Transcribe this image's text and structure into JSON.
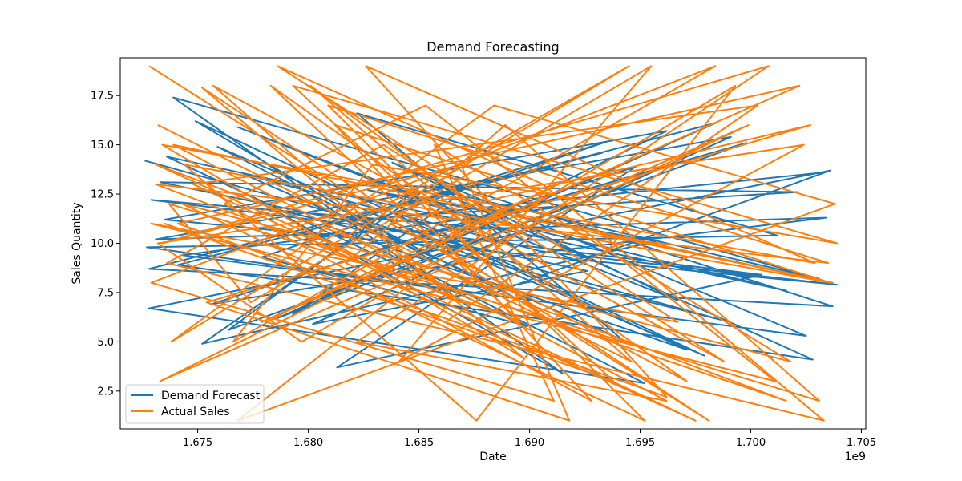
{
  "chart_data": {
    "type": "line",
    "title": "Demand Forecasting",
    "xlabel": "Date",
    "ylabel": "Sales Quantity",
    "x_offset_label": "1e9",
    "xlim": [
      1.6715,
      1.7052
    ],
    "ylim": [
      0.58,
      19.42
    ],
    "x_ticks": [
      1.675,
      1.68,
      1.685,
      1.69,
      1.695,
      1.7,
      1.705
    ],
    "x_tick_labels": [
      "1.675",
      "1.680",
      "1.685",
      "1.690",
      "1.695",
      "1.700",
      "1.705"
    ],
    "y_ticks": [
      2.5,
      5.0,
      7.5,
      10.0,
      12.5,
      15.0,
      17.5
    ],
    "y_tick_labels": [
      "2.5",
      "5.0",
      "7.5",
      "10.0",
      "12.5",
      "15.0",
      "17.5"
    ],
    "grid": false,
    "legend_position": "lower-left",
    "series": [
      {
        "name": "Demand Forecast",
        "color": "#1f77b4",
        "x": [
          1.6726,
          1.6987,
          1.6783,
          1.6915,
          1.6739,
          1.7031,
          1.6851,
          1.6764,
          1.6998,
          1.6832,
          1.6952,
          1.6728,
          1.7036,
          1.6882,
          1.6749,
          1.6971,
          1.6808,
          1.6933,
          1.6741,
          1.7028,
          1.6866,
          1.6793,
          1.6962,
          1.6735,
          1.7039,
          1.6905,
          1.6771,
          1.6942,
          1.6822,
          1.7012,
          1.6727,
          1.6894,
          1.6759,
          1.6979,
          1.6844,
          1.7021,
          1.6733,
          1.6926,
          1.6802,
          1.6991,
          1.6731,
          1.7034,
          1.6874,
          1.6756,
          1.6948,
          1.6813,
          1.7005,
          1.6729,
          1.6889,
          1.6768,
          1.6967,
          1.6838,
          1.7025,
          1.6743,
          1.6918,
          1.6786,
          1.6984,
          1.6728,
          1.7037,
          1.6859,
          1.6752,
          1.6957,
          1.6827,
          1.7016,
          1.6736,
          1.6899,
          1.6779,
          1.6936,
          1.6818,
          1.7033
        ],
        "y": [
          14.2,
          6.1,
          11.8,
          3.4,
          17.4,
          8.2,
          12.9,
          5.6,
          15.1,
          9.7,
          2.9,
          6.7,
          13.7,
          7.4,
          16.2,
          4.6,
          10.9,
          14.6,
          8.9,
          4.1,
          12.3,
          6.4,
          15.7,
          11.2,
          7.9,
          9.6,
          13.5,
          5.1,
          16.6,
          10.4,
          9.8,
          7.2,
          14.9,
          4.3,
          11.4,
          12.6,
          13.1,
          8.6,
          5.9,
          15.4,
          10.2,
          11.3,
          9.1,
          6.9,
          13.9,
          3.7,
          8.4,
          12.2,
          10.7,
          15.9,
          7.1,
          14.1,
          5.3,
          9.4,
          11.9,
          6.2,
          16.1,
          8.7,
          6.8,
          13.2,
          4.9,
          10.1,
          12.7,
          7.6,
          14.4,
          5.8,
          9.3,
          15.2,
          11.1,
          13.6
        ]
      },
      {
        "name": "Actual Sales",
        "color": "#ff7f0e",
        "x": [
          1.6728,
          1.6981,
          1.6752,
          1.6897,
          1.6734,
          1.7029,
          1.6826,
          1.6962,
          1.6741,
          1.7022,
          1.6779,
          1.6913,
          1.6733,
          1.6999,
          1.6847,
          1.6768,
          1.7038,
          1.6884,
          1.6738,
          1.6945,
          1.6805,
          1.7016,
          1.6731,
          1.6869,
          1.6757,
          1.6988,
          1.6834,
          1.6736,
          1.7033,
          1.6906,
          1.6786,
          1.6967,
          1.6729,
          1.7011,
          1.6853,
          1.6762,
          1.6928,
          1.6812,
          1.7036,
          1.6744,
          1.6876,
          1.6993,
          1.6797,
          1.6732,
          1.7024,
          1.6841,
          1.6955,
          1.6774,
          1.6737,
          1.7031,
          1.6889,
          1.6817,
          1.6975,
          1.6748,
          1.7003,
          1.6862,
          1.6735,
          1.6938,
          1.6793,
          1.7039,
          1.6829,
          1.6766,
          1.6984,
          1.6729,
          1.6911,
          1.6857,
          1.7018,
          1.6743,
          1.6952,
          1.6809,
          1.7035,
          1.6731,
          1.6896,
          1.6783,
          1.6971,
          1.6837,
          1.7027,
          1.6754,
          1.6918,
          1.6869,
          1.6734,
          1.7008,
          1.6822,
          1.6962,
          1.6739,
          1.7037,
          1.6873,
          1.6801,
          1.6946,
          1.6732
        ],
        "y": [
          19.0,
          1.0,
          17.9,
          4.2,
          15.0,
          9.0,
          19.0,
          2.2,
          11.0,
          18.0,
          6.0,
          13.0,
          3.0,
          16.0,
          8.0,
          1.0,
          12.0,
          17.0,
          5.0,
          19.0,
          10.0,
          2.0,
          14.0,
          7.0,
          18.0,
          4.0,
          15.0,
          9.0,
          1.0,
          13.0,
          19.0,
          6.0,
          11.0,
          3.0,
          17.0,
          12.0,
          2.0,
          16.0,
          8.0,
          14.0,
          1.0,
          18.0,
          5.0,
          10.0,
          15.0,
          4.0,
          19.0,
          7.0,
          12.0,
          2.0,
          16.0,
          9.0,
          1.0,
          13.0,
          17.0,
          6.0,
          11.0,
          3.0,
          18.0,
          10.0,
          14.0,
          5.0,
          19.0,
          8.0,
          2.0,
          15.0,
          4.0,
          12.0,
          1.0,
          17.0,
          9.0,
          13.0,
          6.0,
          18.0,
          3.0,
          11.0,
          16.0,
          7.0,
          1.0,
          14.0,
          10.0,
          19.0,
          5.0,
          2.0,
          15.0,
          8.0,
          12.0,
          18.0,
          4.0,
          16.0
        ]
      }
    ]
  }
}
